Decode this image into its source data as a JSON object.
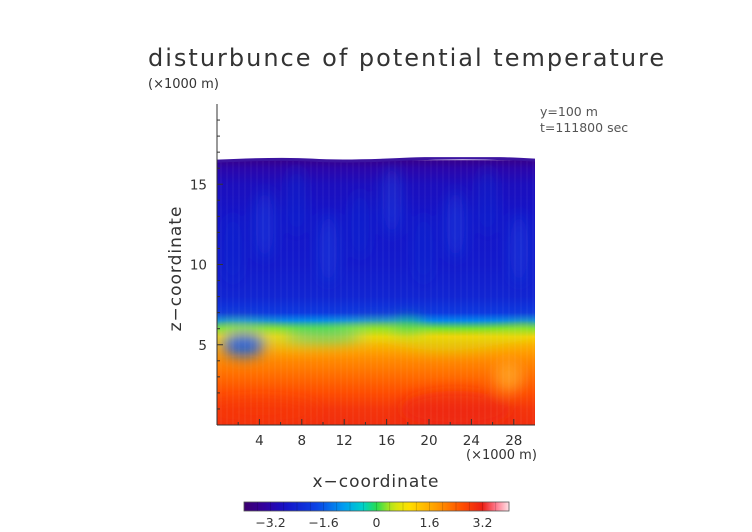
{
  "chart_data": {
    "type": "heatmap",
    "title": "disturbunce of potential temperature",
    "xlabel": "x−coordinate",
    "ylabel": "z−coordinate",
    "x_unit": "(×1000 m)",
    "y_unit": "(×1000 m)",
    "info": [
      "y=100  m",
      "t=111800 sec"
    ],
    "xlim": [
      0,
      30
    ],
    "ylim": [
      0,
      20
    ],
    "xticks": [
      4,
      8,
      12,
      16,
      20,
      24,
      28
    ],
    "xtick_labels": [
      "4",
      "8",
      "12",
      "16",
      "20",
      "24",
      "28"
    ],
    "yticks": [
      5,
      10,
      15
    ],
    "ytick_labels": [
      "5",
      "10",
      "15"
    ],
    "data_top_km": 16.5,
    "colorbar": {
      "range": [
        -4,
        4
      ],
      "ticks": [
        -3.2,
        -1.6,
        0,
        1.6,
        3.2
      ],
      "tick_labels": [
        "−3.2",
        "−1.6",
        "0",
        "1.6",
        "3.2"
      ]
    },
    "field_profile": {
      "z": [
        0,
        1,
        2,
        3,
        4,
        5,
        5.5,
        6,
        6.5,
        7,
        8,
        10,
        13,
        15,
        16,
        16.5
      ],
      "value": [
        3.0,
        2.9,
        2.6,
        2.3,
        2.0,
        1.6,
        1.2,
        0.2,
        -1.2,
        -2.0,
        -2.4,
        -2.6,
        -2.7,
        -2.9,
        -3.2,
        -3.6
      ]
    }
  }
}
